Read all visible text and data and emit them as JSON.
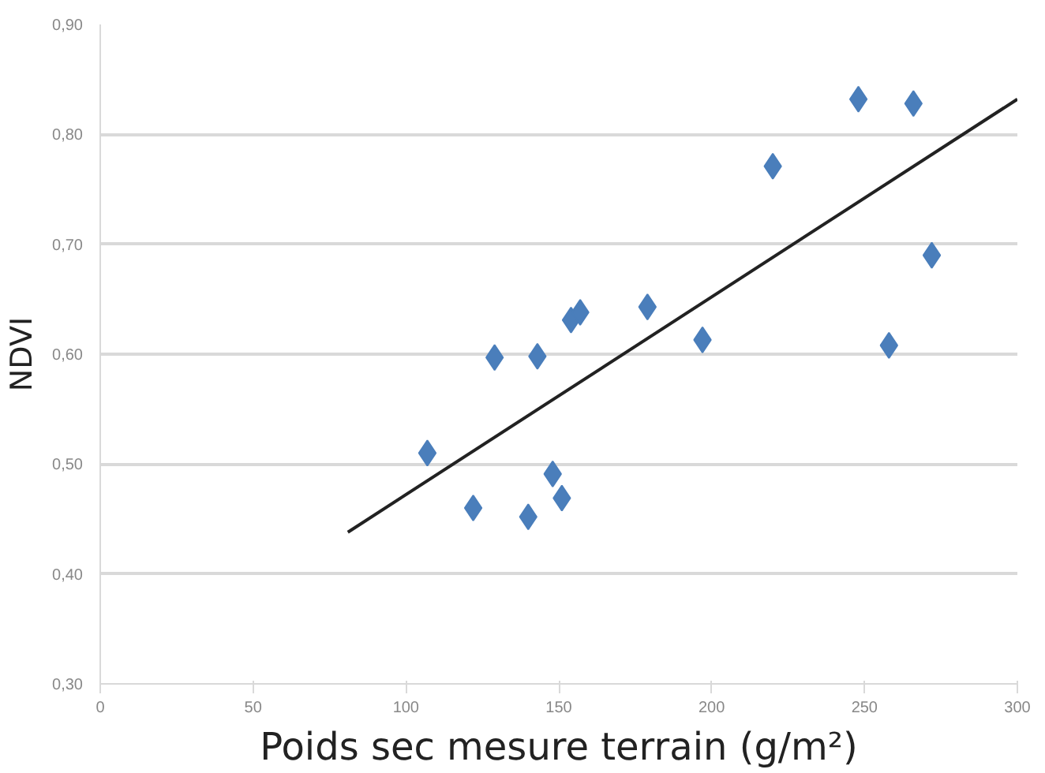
{
  "chart_data": {
    "type": "scatter",
    "xlabel": "Poids sec mesure terrain (g/m²)",
    "ylabel": "NDVI",
    "xlim": [
      0,
      300
    ],
    "xticks": [
      0,
      50,
      100,
      150,
      200,
      250,
      300
    ],
    "ylim": [
      0.3,
      0.9
    ],
    "yticks": [
      {
        "value": 0.3,
        "label": "0,30"
      },
      {
        "value": 0.4,
        "label": "0,40"
      },
      {
        "value": 0.5,
        "label": "0,50"
      },
      {
        "value": 0.6,
        "label": "0,60"
      },
      {
        "value": 0.7,
        "label": "0,70"
      },
      {
        "value": 0.8,
        "label": "0,80"
      },
      {
        "value": 0.9,
        "label": "0,90"
      }
    ],
    "grid": "y",
    "series": [
      {
        "marker": "diamond",
        "color": "#4a7ebb",
        "x": [
          107,
          122,
          129,
          140,
          143,
          148,
          151,
          154,
          157,
          179,
          197,
          220,
          248,
          258,
          266,
          272
        ],
        "values": [
          0.51,
          0.46,
          0.597,
          0.452,
          0.598,
          0.491,
          0.469,
          0.631,
          0.638,
          0.643,
          0.613,
          0.771,
          0.832,
          0.608,
          0.828,
          0.69
        ]
      },
      {
        "type": "line",
        "color": "#222222",
        "line_style": "solid",
        "x": [
          81,
          300
        ],
        "values": [
          0.438,
          0.832
        ]
      }
    ]
  }
}
